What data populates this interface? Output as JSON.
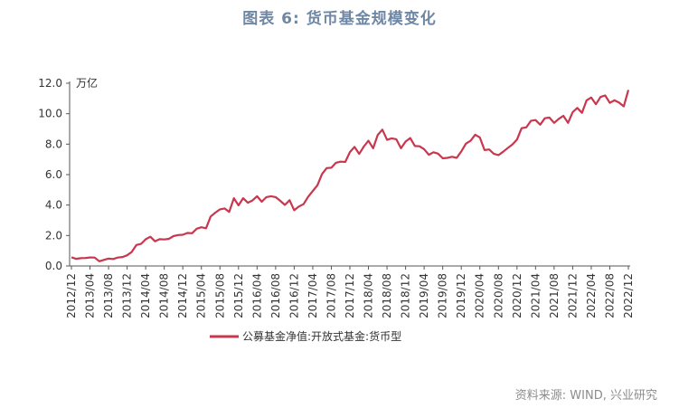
{
  "title": "图表 6:  货币基金规模变化",
  "source": "资料来源: WIND, 兴业研究",
  "colors": {
    "line": "#C8374E",
    "title": "#6E87A5"
  },
  "chart_data": {
    "type": "line",
    "unit": "万亿",
    "ylim": [
      0,
      12
    ],
    "yticks": [
      0,
      2,
      4,
      6,
      8,
      10,
      12
    ],
    "ytick_labels": [
      "0.0",
      "2.0",
      "4.0",
      "6.0",
      "8.0",
      "10.0",
      "12.0"
    ],
    "xtick_labels": [
      "2012/12",
      "2013/04",
      "2013/08",
      "2013/12",
      "2014/04",
      "2014/08",
      "2014/12",
      "2015/04",
      "2015/08",
      "2015/12",
      "2016/04",
      "2016/08",
      "2016/12",
      "2017/04",
      "2017/08",
      "2017/12",
      "2018/04",
      "2018/08",
      "2018/12",
      "2019/04",
      "2019/08",
      "2019/12",
      "2020/04",
      "2020/08",
      "2020/12",
      "2021/04",
      "2021/08",
      "2021/12",
      "2022/04",
      "2022/08",
      "2022/12"
    ],
    "grid": false,
    "legend_position": "bottom",
    "series": [
      {
        "name": "公募基金净值:开放式基金:货币型",
        "start": "2012/12",
        "values": [
          0.57,
          0.47,
          0.51,
          0.52,
          0.56,
          0.55,
          0.31,
          0.4,
          0.49,
          0.46,
          0.55,
          0.59,
          0.7,
          0.92,
          1.38,
          1.45,
          1.75,
          1.92,
          1.62,
          1.76,
          1.74,
          1.78,
          1.96,
          2.03,
          2.05,
          2.17,
          2.15,
          2.45,
          2.54,
          2.48,
          3.25,
          3.5,
          3.72,
          3.78,
          3.55,
          4.45,
          3.98,
          4.45,
          4.15,
          4.3,
          4.58,
          4.22,
          4.52,
          4.58,
          4.52,
          4.28,
          4.01,
          4.32,
          3.66,
          3.9,
          4.06,
          4.54,
          4.92,
          5.3,
          6.04,
          6.43,
          6.45,
          6.78,
          6.85,
          6.83,
          7.48,
          7.82,
          7.36,
          7.84,
          8.22,
          7.73,
          8.61,
          8.95,
          8.28,
          8.38,
          8.32,
          7.73,
          8.17,
          8.4,
          7.88,
          7.86,
          7.67,
          7.3,
          7.47,
          7.38,
          7.07,
          7.1,
          7.17,
          7.1,
          7.52,
          8.03,
          8.22,
          8.62,
          8.44,
          7.61,
          7.65,
          7.37,
          7.28,
          7.5,
          7.74,
          7.98,
          8.3,
          9.05,
          9.1,
          9.53,
          9.58,
          9.28,
          9.7,
          9.74,
          9.4,
          9.66,
          9.86,
          9.4,
          10.1,
          10.38,
          10.06,
          10.88,
          11.06,
          10.62,
          11.1,
          11.2,
          10.71,
          10.88,
          10.73,
          10.48,
          11.56
        ]
      }
    ]
  }
}
